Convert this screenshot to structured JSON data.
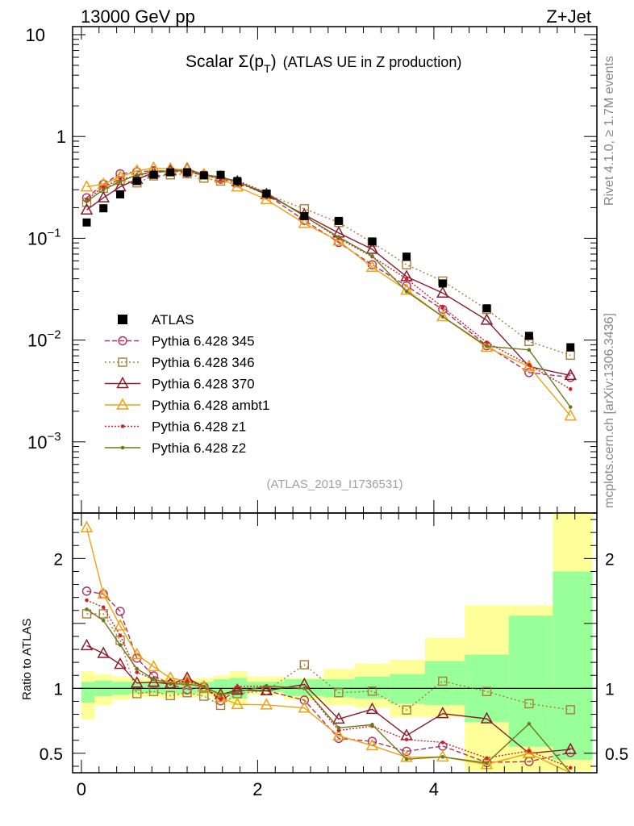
{
  "header": {
    "left": "13000 GeV pp",
    "right": "Z+Jet"
  },
  "side_text": {
    "rivet": "Rivet 4.1.0, ≥ 1.7M events",
    "mcplots": "mcplots.cern.ch [arXiv:1306.3436]"
  },
  "chart_data": {
    "type": "line",
    "title": "Scalar Σ(p_T) (ATLAS UE in Z production)",
    "title_main": "Scalar Σ(p",
    "title_sub": "T",
    "title_close": ")",
    "title_rest": "(ATLAS UE in Z production)",
    "analysis_id": "(ATLAS_2019_I1736531)",
    "main_panel": {
      "yscale": "log",
      "ylim": [
        0.0002,
        12
      ],
      "y_ticks": [
        {
          "value": 0.001,
          "base": "10",
          "exp": "−3"
        },
        {
          "value": 0.01,
          "base": "10",
          "exp": "−2"
        },
        {
          "value": 0.1,
          "base": "10",
          "exp": "−1"
        },
        {
          "value": 1,
          "base": "1",
          "exp": ""
        },
        {
          "value": 10,
          "base": "10",
          "exp": ""
        }
      ]
    },
    "ratio_panel": {
      "ylabel": "Ratio to ATLAS",
      "ylim": [
        0.35,
        2.35
      ],
      "y_ticks": [
        {
          "value": 0.5,
          "label": "0.5"
        },
        {
          "value": 1,
          "label": "1"
        },
        {
          "value": 2,
          "label": "2"
        }
      ]
    },
    "xlim": [
      -0.1,
      5.85
    ],
    "x_ticks": [
      {
        "value": 0,
        "label": "0"
      },
      {
        "value": 2,
        "label": "2"
      },
      {
        "value": 4,
        "label": "4"
      }
    ],
    "x": [
      0.06,
      0.25,
      0.44,
      0.63,
      0.82,
      1.01,
      1.2,
      1.39,
      1.58,
      1.77,
      2.1,
      2.53,
      2.92,
      3.3,
      3.69,
      4.1,
      4.6,
      5.08,
      5.55
    ],
    "bin_edges": [
      0.0,
      0.15,
      0.35,
      0.55,
      0.72,
      0.92,
      1.1,
      1.3,
      1.5,
      1.68,
      1.88,
      2.3,
      2.75,
      3.1,
      3.5,
      3.9,
      4.35,
      4.85,
      5.35,
      5.8
    ],
    "band_yellow_lo": [
      0.76,
      0.87,
      0.91,
      0.93,
      0.93,
      0.92,
      0.93,
      0.93,
      0.92,
      0.87,
      0.95,
      0.91,
      0.87,
      0.85,
      0.78,
      0.78,
      0.36,
      0.36,
      0.36
    ],
    "band_yellow_hi": [
      1.13,
      1.11,
      1.09,
      1.08,
      1.08,
      1.08,
      1.07,
      1.08,
      1.1,
      1.13,
      1.09,
      1.08,
      1.15,
      1.19,
      1.22,
      1.39,
      1.64,
      1.64,
      2.35
    ],
    "band_green_lo": [
      0.89,
      0.94,
      0.95,
      0.96,
      0.96,
      0.96,
      0.96,
      0.96,
      0.95,
      0.92,
      0.97,
      0.94,
      0.93,
      0.92,
      0.88,
      0.87,
      0.74,
      0.55,
      0.45
    ],
    "band_green_hi": [
      1.05,
      1.06,
      1.05,
      1.05,
      1.05,
      1.05,
      1.05,
      1.05,
      1.07,
      1.08,
      1.05,
      1.07,
      1.07,
      1.09,
      1.11,
      1.21,
      1.26,
      1.56,
      1.9
    ],
    "data_label": "ATLAS",
    "data_values": [
      0.143,
      0.197,
      0.27,
      0.365,
      0.42,
      0.445,
      0.445,
      0.415,
      0.42,
      0.365,
      0.275,
      0.165,
      0.148,
      0.093,
      0.066,
      0.036,
      0.0205,
      0.011,
      0.0085
    ],
    "series": [
      {
        "name": "Pythia 6.428 345",
        "color": "#b03060",
        "marker": "circle",
        "dash": "6,3",
        "values": [
          0.25,
          0.34,
          0.43,
          0.45,
          0.46,
          0.46,
          0.44,
          0.42,
          0.38,
          0.36,
          0.27,
          0.15,
          0.091,
          0.055,
          0.034,
          0.02,
          0.0088,
          0.0048,
          0.0043
        ]
      },
      {
        "name": "Pythia 6.428 346",
        "color": "#a87c3a",
        "marker": "square",
        "dash": "2,3",
        "values": [
          0.225,
          0.31,
          0.37,
          0.35,
          0.41,
          0.42,
          0.43,
          0.39,
          0.365,
          0.35,
          0.27,
          0.195,
          0.143,
          0.091,
          0.055,
          0.038,
          0.02,
          0.0097,
          0.0071
        ]
      },
      {
        "name": "Pythia 6.428 370",
        "color": "#8b1a2b",
        "marker": "triangle",
        "dash": "",
        "values": [
          0.19,
          0.25,
          0.32,
          0.38,
          0.44,
          0.46,
          0.48,
          0.42,
          0.4,
          0.36,
          0.27,
          0.17,
          0.113,
          0.078,
          0.042,
          0.029,
          0.0157,
          0.0055,
          0.0045
        ]
      },
      {
        "name": "Pythia 6.428 ambt1",
        "color": "#f0a010",
        "marker": "triangle",
        "dash": "",
        "values": [
          0.32,
          0.34,
          0.4,
          0.46,
          0.49,
          0.48,
          0.47,
          0.42,
          0.39,
          0.32,
          0.24,
          0.14,
          0.094,
          0.052,
          0.031,
          0.017,
          0.0085,
          0.0055,
          0.0018
        ]
      },
      {
        "name": "Pythia 6.428 z1",
        "color": "#d42020",
        "marker": "dot",
        "dash": "2,2",
        "values": [
          0.24,
          0.32,
          0.38,
          0.41,
          0.45,
          0.46,
          0.47,
          0.42,
          0.385,
          0.37,
          0.28,
          0.165,
          0.1,
          0.066,
          0.04,
          0.021,
          0.0095,
          0.0057,
          0.0033
        ]
      },
      {
        "name": "Pythia 6.428 z2",
        "color": "#6b7a1a",
        "marker": "dot",
        "dash": "",
        "values": [
          0.23,
          0.3,
          0.36,
          0.42,
          0.45,
          0.46,
          0.46,
          0.42,
          0.4,
          0.355,
          0.28,
          0.165,
          0.103,
          0.067,
          0.03,
          0.017,
          0.0087,
          0.008,
          0.0022
        ]
      }
    ]
  }
}
